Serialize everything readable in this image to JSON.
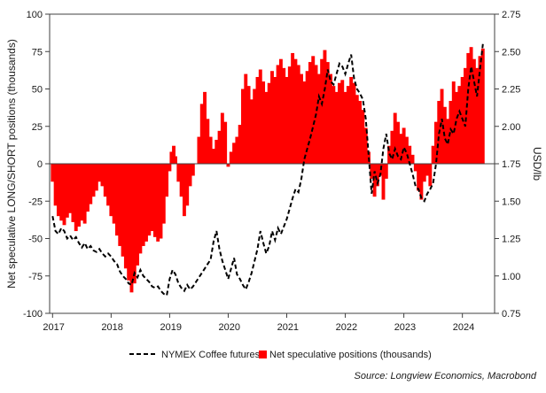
{
  "chart_data": {
    "type": "bar+line",
    "ylabel_left": "Net speculative LONG/SHORT positions (thousands)",
    "ylabel_right": "USD/lb",
    "ylim_left": [
      -100,
      100
    ],
    "ylim_right": [
      0.75,
      2.75
    ],
    "yticks_left": [
      "100",
      "75",
      "50",
      "25",
      "0",
      "-25",
      "-50",
      "-75",
      "-100"
    ],
    "yticks_right": [
      "2.75",
      "2.50",
      "2.25",
      "2.00",
      "1.75",
      "1.50",
      "1.25",
      "1.00",
      "0.75"
    ],
    "xticks": [
      "2017",
      "2018",
      "2019",
      "2020",
      "2021",
      "2022",
      "2023",
      "2024"
    ],
    "xlim": [
      2016.95,
      2024.55
    ],
    "legend": {
      "line_label": "NYMEX Coffee futures",
      "bar_label": "Net speculative positions (thousands)",
      "placement": "bottom"
    },
    "source": "Source: Longview Economics, Macrobond",
    "colors": {
      "bars": "#ff0000",
      "line": "#000000",
      "axis": "#404040"
    },
    "series": [
      {
        "name": "Net speculative positions (thousands)",
        "axis": "left",
        "style": "bars",
        "points": [
          [
            2017.0,
            -12
          ],
          [
            2017.05,
            -28
          ],
          [
            2017.1,
            -35
          ],
          [
            2017.15,
            -38
          ],
          [
            2017.2,
            -41
          ],
          [
            2017.25,
            -36
          ],
          [
            2017.3,
            -33
          ],
          [
            2017.35,
            -39
          ],
          [
            2017.4,
            -45
          ],
          [
            2017.45,
            -42
          ],
          [
            2017.5,
            -38
          ],
          [
            2017.55,
            -40
          ],
          [
            2017.6,
            -32
          ],
          [
            2017.65,
            -27
          ],
          [
            2017.7,
            -22
          ],
          [
            2017.75,
            -18
          ],
          [
            2017.8,
            -12
          ],
          [
            2017.85,
            -15
          ],
          [
            2017.9,
            -22
          ],
          [
            2017.95,
            -28
          ],
          [
            2018.0,
            -35
          ],
          [
            2018.05,
            -40
          ],
          [
            2018.1,
            -48
          ],
          [
            2018.15,
            -55
          ],
          [
            2018.2,
            -62
          ],
          [
            2018.25,
            -70
          ],
          [
            2018.3,
            -78
          ],
          [
            2018.35,
            -86
          ],
          [
            2018.4,
            -80
          ],
          [
            2018.45,
            -68
          ],
          [
            2018.5,
            -60
          ],
          [
            2018.55,
            -55
          ],
          [
            2018.6,
            -52
          ],
          [
            2018.65,
            -48
          ],
          [
            2018.7,
            -45
          ],
          [
            2018.75,
            -49
          ],
          [
            2018.8,
            -52
          ],
          [
            2018.85,
            -50
          ],
          [
            2018.9,
            -40
          ],
          [
            2018.95,
            -22
          ],
          [
            2019.0,
            -5
          ],
          [
            2019.03,
            8
          ],
          [
            2019.07,
            12
          ],
          [
            2019.1,
            5
          ],
          [
            2019.15,
            -12
          ],
          [
            2019.2,
            -22
          ],
          [
            2019.25,
            -35
          ],
          [
            2019.3,
            -28
          ],
          [
            2019.35,
            -15
          ],
          [
            2019.4,
            -8
          ],
          [
            2019.45,
            0
          ],
          [
            2019.5,
            18
          ],
          [
            2019.55,
            40
          ],
          [
            2019.6,
            48
          ],
          [
            2019.65,
            30
          ],
          [
            2019.7,
            18
          ],
          [
            2019.75,
            10
          ],
          [
            2019.8,
            16
          ],
          [
            2019.85,
            22
          ],
          [
            2019.9,
            34
          ],
          [
            2019.95,
            28
          ],
          [
            2020.0,
            -2
          ],
          [
            2020.05,
            8
          ],
          [
            2020.1,
            14
          ],
          [
            2020.15,
            18
          ],
          [
            2020.2,
            26
          ],
          [
            2020.25,
            50
          ],
          [
            2020.3,
            60
          ],
          [
            2020.35,
            52
          ],
          [
            2020.4,
            43
          ],
          [
            2020.45,
            50
          ],
          [
            2020.5,
            58
          ],
          [
            2020.55,
            63
          ],
          [
            2020.6,
            55
          ],
          [
            2020.65,
            48
          ],
          [
            2020.7,
            54
          ],
          [
            2020.75,
            62
          ],
          [
            2020.8,
            58
          ],
          [
            2020.85,
            66
          ],
          [
            2020.9,
            70
          ],
          [
            2020.95,
            64
          ],
          [
            2021.0,
            58
          ],
          [
            2021.05,
            65
          ],
          [
            2021.1,
            74
          ],
          [
            2021.15,
            70
          ],
          [
            2021.2,
            66
          ],
          [
            2021.25,
            60
          ],
          [
            2021.3,
            55
          ],
          [
            2021.35,
            62
          ],
          [
            2021.4,
            68
          ],
          [
            2021.45,
            72
          ],
          [
            2021.5,
            66
          ],
          [
            2021.55,
            60
          ],
          [
            2021.6,
            70
          ],
          [
            2021.65,
            76
          ],
          [
            2021.7,
            68
          ],
          [
            2021.75,
            60
          ],
          [
            2021.8,
            52
          ],
          [
            2021.85,
            48
          ],
          [
            2021.9,
            54
          ],
          [
            2021.95,
            56
          ],
          [
            2022.0,
            48
          ],
          [
            2022.05,
            52
          ],
          [
            2022.1,
            58
          ],
          [
            2022.15,
            54
          ],
          [
            2022.2,
            46
          ],
          [
            2022.25,
            42
          ],
          [
            2022.3,
            36
          ],
          [
            2022.35,
            24
          ],
          [
            2022.4,
            8
          ],
          [
            2022.45,
            -10
          ],
          [
            2022.5,
            -22
          ],
          [
            2022.55,
            -15
          ],
          [
            2022.6,
            -8
          ],
          [
            2022.65,
            -24
          ],
          [
            2022.7,
            -10
          ],
          [
            2022.75,
            12
          ],
          [
            2022.8,
            22
          ],
          [
            2022.85,
            34
          ],
          [
            2022.9,
            28
          ],
          [
            2022.95,
            20
          ],
          [
            2023.0,
            24
          ],
          [
            2023.05,
            18
          ],
          [
            2023.1,
            12
          ],
          [
            2023.15,
            6
          ],
          [
            2023.2,
            -5
          ],
          [
            2023.25,
            -18
          ],
          [
            2023.3,
            -24
          ],
          [
            2023.35,
            -12
          ],
          [
            2023.4,
            -8
          ],
          [
            2023.45,
            -15
          ],
          [
            2023.5,
            12
          ],
          [
            2023.55,
            28
          ],
          [
            2023.6,
            42
          ],
          [
            2023.65,
            50
          ],
          [
            2023.7,
            38
          ],
          [
            2023.75,
            30
          ],
          [
            2023.8,
            42
          ],
          [
            2023.85,
            55
          ],
          [
            2023.9,
            48
          ],
          [
            2023.95,
            52
          ],
          [
            2024.0,
            58
          ],
          [
            2024.05,
            64
          ],
          [
            2024.1,
            74
          ],
          [
            2024.15,
            78
          ],
          [
            2024.2,
            70
          ],
          [
            2024.25,
            64
          ],
          [
            2024.3,
            72
          ],
          [
            2024.35,
            77
          ]
        ]
      },
      {
        "name": "NYMEX Coffee futures",
        "axis": "right",
        "style": "dashed-line",
        "points": [
          [
            2017.0,
            1.4
          ],
          [
            2017.05,
            1.3
          ],
          [
            2017.1,
            1.28
          ],
          [
            2017.15,
            1.32
          ],
          [
            2017.2,
            1.3
          ],
          [
            2017.25,
            1.25
          ],
          [
            2017.3,
            1.27
          ],
          [
            2017.35,
            1.24
          ],
          [
            2017.4,
            1.26
          ],
          [
            2017.45,
            1.22
          ],
          [
            2017.5,
            1.19
          ],
          [
            2017.55,
            1.22
          ],
          [
            2017.6,
            1.18
          ],
          [
            2017.65,
            1.2
          ],
          [
            2017.7,
            1.17
          ],
          [
            2017.75,
            1.16
          ],
          [
            2017.8,
            1.18
          ],
          [
            2017.85,
            1.15
          ],
          [
            2017.9,
            1.13
          ],
          [
            2017.95,
            1.15
          ],
          [
            2018.0,
            1.13
          ],
          [
            2018.05,
            1.1
          ],
          [
            2018.1,
            1.08
          ],
          [
            2018.15,
            1.03
          ],
          [
            2018.2,
            1.0
          ],
          [
            2018.25,
            0.98
          ],
          [
            2018.3,
            0.95
          ],
          [
            2018.35,
            0.94
          ],
          [
            2018.4,
            1.02
          ],
          [
            2018.45,
            0.99
          ],
          [
            2018.5,
            1.04
          ],
          [
            2018.55,
            1.0
          ],
          [
            2018.6,
            0.98
          ],
          [
            2018.65,
            0.96
          ],
          [
            2018.7,
            0.93
          ],
          [
            2018.75,
            0.92
          ],
          [
            2018.8,
            0.93
          ],
          [
            2018.85,
            0.9
          ],
          [
            2018.9,
            0.88
          ],
          [
            2018.95,
            0.87
          ],
          [
            2019.0,
            0.98
          ],
          [
            2019.05,
            1.04
          ],
          [
            2019.1,
            1.01
          ],
          [
            2019.15,
            0.95
          ],
          [
            2019.2,
            0.92
          ],
          [
            2019.25,
            0.9
          ],
          [
            2019.3,
            0.94
          ],
          [
            2019.35,
            0.91
          ],
          [
            2019.4,
            0.93
          ],
          [
            2019.45,
            0.96
          ],
          [
            2019.5,
            0.99
          ],
          [
            2019.55,
            1.02
          ],
          [
            2019.6,
            1.05
          ],
          [
            2019.65,
            1.08
          ],
          [
            2019.7,
            1.11
          ],
          [
            2019.75,
            1.23
          ],
          [
            2019.8,
            1.3
          ],
          [
            2019.85,
            1.18
          ],
          [
            2019.9,
            1.1
          ],
          [
            2019.95,
            1.04
          ],
          [
            2020.0,
            0.98
          ],
          [
            2020.05,
            1.05
          ],
          [
            2020.1,
            1.12
          ],
          [
            2020.15,
            1.01
          ],
          [
            2020.2,
            0.98
          ],
          [
            2020.25,
            0.94
          ],
          [
            2020.3,
            0.91
          ],
          [
            2020.35,
            0.96
          ],
          [
            2020.4,
            1.02
          ],
          [
            2020.45,
            1.1
          ],
          [
            2020.5,
            1.18
          ],
          [
            2020.55,
            1.3
          ],
          [
            2020.6,
            1.22
          ],
          [
            2020.65,
            1.15
          ],
          [
            2020.7,
            1.2
          ],
          [
            2020.75,
            1.3
          ],
          [
            2020.8,
            1.24
          ],
          [
            2020.85,
            1.32
          ],
          [
            2020.9,
            1.28
          ],
          [
            2020.95,
            1.33
          ],
          [
            2021.0,
            1.38
          ],
          [
            2021.05,
            1.45
          ],
          [
            2021.1,
            1.52
          ],
          [
            2021.15,
            1.58
          ],
          [
            2021.2,
            1.56
          ],
          [
            2021.25,
            1.65
          ],
          [
            2021.3,
            1.78
          ],
          [
            2021.35,
            1.85
          ],
          [
            2021.4,
            1.92
          ],
          [
            2021.45,
            2.0
          ],
          [
            2021.5,
            2.08
          ],
          [
            2021.55,
            2.2
          ],
          [
            2021.6,
            2.15
          ],
          [
            2021.65,
            2.25
          ],
          [
            2021.7,
            2.38
          ],
          [
            2021.75,
            2.3
          ],
          [
            2021.8,
            2.28
          ],
          [
            2021.85,
            2.35
          ],
          [
            2021.9,
            2.42
          ],
          [
            2021.95,
            2.4
          ],
          [
            2022.0,
            2.35
          ],
          [
            2022.05,
            2.42
          ],
          [
            2022.1,
            2.48
          ],
          [
            2022.15,
            2.32
          ],
          [
            2022.2,
            2.25
          ],
          [
            2022.25,
            2.22
          ],
          [
            2022.3,
            2.18
          ],
          [
            2022.35,
            2.05
          ],
          [
            2022.4,
            1.8
          ],
          [
            2022.45,
            1.55
          ],
          [
            2022.5,
            1.7
          ],
          [
            2022.55,
            1.62
          ],
          [
            2022.6,
            1.68
          ],
          [
            2022.65,
            1.85
          ],
          [
            2022.7,
            1.95
          ],
          [
            2022.75,
            1.82
          ],
          [
            2022.8,
            1.78
          ],
          [
            2022.85,
            1.85
          ],
          [
            2022.9,
            1.8
          ],
          [
            2022.95,
            1.78
          ],
          [
            2023.0,
            1.86
          ],
          [
            2023.05,
            1.82
          ],
          [
            2023.1,
            1.75
          ],
          [
            2023.15,
            1.68
          ],
          [
            2023.2,
            1.6
          ],
          [
            2023.25,
            1.58
          ],
          [
            2023.3,
            1.52
          ],
          [
            2023.35,
            1.5
          ],
          [
            2023.4,
            1.55
          ],
          [
            2023.45,
            1.58
          ],
          [
            2023.5,
            1.62
          ],
          [
            2023.55,
            1.75
          ],
          [
            2023.6,
            1.95
          ],
          [
            2023.65,
            2.05
          ],
          [
            2023.7,
            1.92
          ],
          [
            2023.75,
            1.88
          ],
          [
            2023.8,
            1.98
          ],
          [
            2023.85,
            1.95
          ],
          [
            2023.9,
            2.05
          ],
          [
            2023.95,
            2.1
          ],
          [
            2024.0,
            2.05
          ],
          [
            2024.05,
            2.0
          ],
          [
            2024.1,
            2.25
          ],
          [
            2024.15,
            2.4
          ],
          [
            2024.2,
            2.3
          ],
          [
            2024.25,
            2.2
          ],
          [
            2024.3,
            2.38
          ],
          [
            2024.35,
            2.55
          ]
        ]
      }
    ]
  }
}
